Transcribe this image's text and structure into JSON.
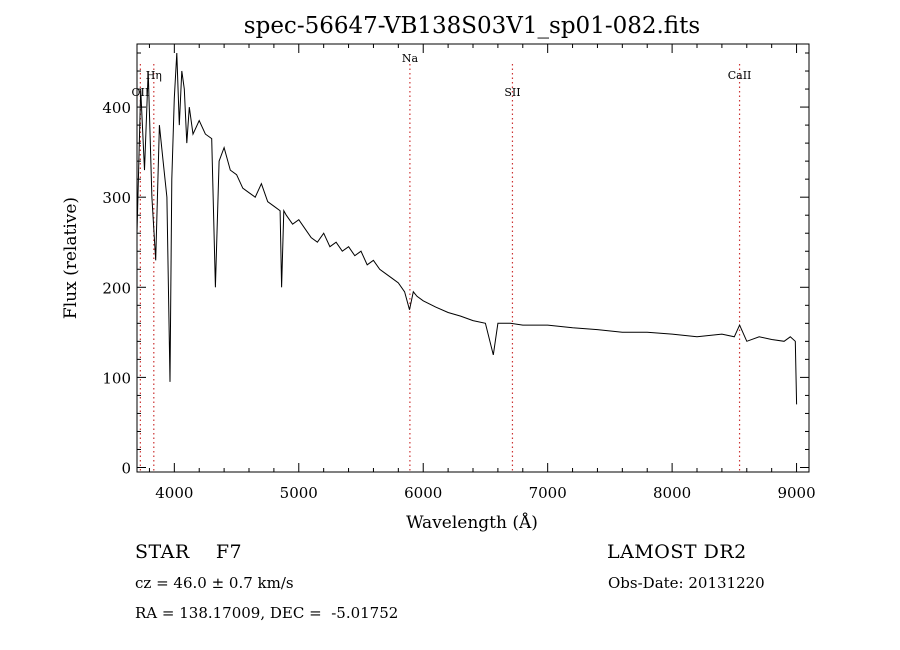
{
  "chart_data": {
    "type": "line",
    "title": "spec-56647-VB138S03V1_sp01-082.fits",
    "xlabel": "Wavelength (Å)",
    "ylabel": "Flux (relative)",
    "xlim": [
      3700,
      9100
    ],
    "ylim": [
      -5,
      470
    ],
    "x_ticks": [
      4000,
      5000,
      6000,
      7000,
      8000,
      9000
    ],
    "y_ticks": [
      0,
      100,
      200,
      300,
      400
    ],
    "grid": false,
    "line_color": "#000000",
    "marker_color": "#cc3333",
    "series": [
      {
        "x": [
          3700,
          3730,
          3760,
          3790,
          3820,
          3850,
          3880,
          3910,
          3940,
          3965,
          3980,
          4000,
          4020,
          4040,
          4060,
          4080,
          4100,
          4120,
          4150,
          4200,
          4250,
          4300,
          4330,
          4360,
          4400,
          4450,
          4500,
          4550,
          4600,
          4650,
          4700,
          4750,
          4800,
          4850,
          4862,
          4880,
          4900,
          4950,
          5000,
          5050,
          5100,
          5150,
          5200,
          5250,
          5300,
          5350,
          5400,
          5450,
          5500,
          5550,
          5600,
          5650,
          5700,
          5750,
          5800,
          5850,
          5890,
          5920,
          5950,
          6000,
          6100,
          6200,
          6300,
          6400,
          6500,
          6563,
          6600,
          6700,
          6800,
          7000,
          7200,
          7400,
          7600,
          7800,
          8000,
          8200,
          8400,
          8500,
          8542,
          8600,
          8700,
          8800,
          8900,
          8950,
          8990,
          9000
        ],
        "y": [
          260,
          420,
          330,
          440,
          300,
          230,
          380,
          340,
          300,
          95,
          320,
          410,
          460,
          380,
          440,
          420,
          360,
          400,
          370,
          385,
          370,
          365,
          200,
          340,
          355,
          330,
          325,
          310,
          305,
          300,
          315,
          295,
          290,
          285,
          200,
          285,
          280,
          270,
          275,
          265,
          255,
          250,
          260,
          245,
          250,
          240,
          245,
          235,
          240,
          225,
          230,
          220,
          215,
          210,
          205,
          195,
          175,
          195,
          190,
          185,
          178,
          172,
          168,
          163,
          160,
          125,
          160,
          160,
          158,
          158,
          155,
          153,
          150,
          150,
          148,
          145,
          148,
          145,
          158,
          140,
          145,
          142,
          140,
          145,
          140,
          70
        ]
      }
    ],
    "lines": [
      {
        "name": "OII",
        "x": 3727
      },
      {
        "name": "Hη",
        "x": 3835
      },
      {
        "name": "Na",
        "x": 5893
      },
      {
        "name": "SII",
        "x": 6717
      },
      {
        "name": "CaII",
        "x": 8542
      }
    ]
  },
  "info": {
    "class": "STAR    F7",
    "survey": "LAMOST DR2",
    "cz": "cz = 46.0 ± 0.7 km/s",
    "obs_date": "Obs-Date: 20131220",
    "coords": "RA = 138.17009, DEC =  -5.01752"
  }
}
